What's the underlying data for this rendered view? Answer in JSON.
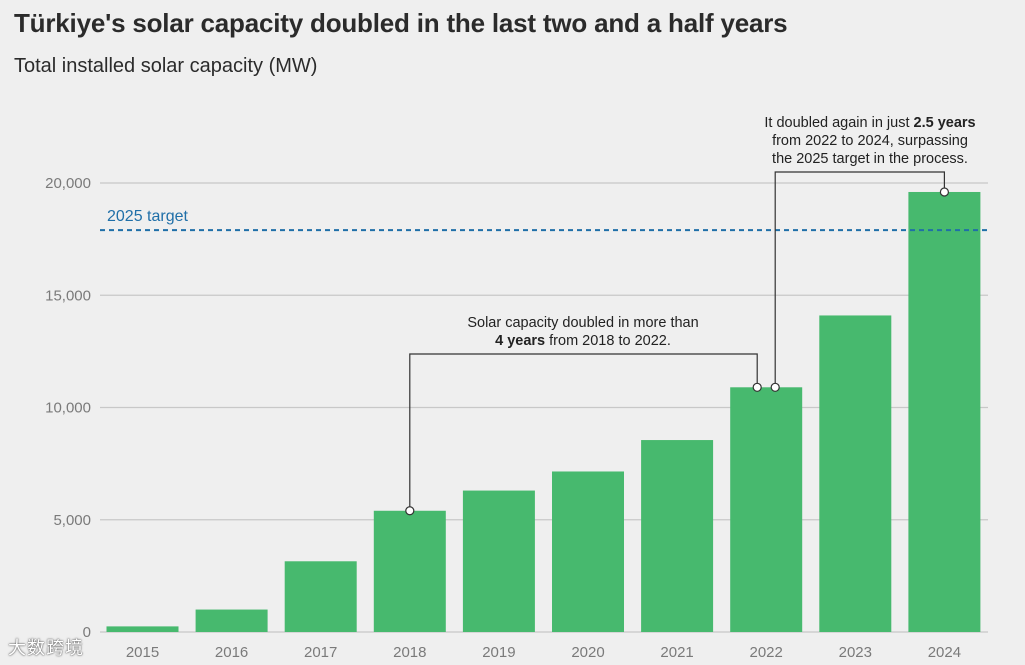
{
  "title": "Türkiye's solar capacity doubled in the last two and a half years",
  "subtitle": "Total installed solar capacity (MW)",
  "watermark": "大数跨境",
  "colors": {
    "bar": "#47b96e",
    "target_line": "#1f6fa8",
    "grid": "#c8c8c8",
    "annotation_line": "#333333"
  },
  "chart_data": {
    "type": "bar",
    "categories": [
      "2015",
      "2016",
      "2017",
      "2018",
      "2019",
      "2020",
      "2021",
      "2022",
      "2023",
      "2024"
    ],
    "values": [
      250,
      1000,
      3150,
      5400,
      6300,
      7150,
      8550,
      10900,
      14100,
      19600
    ],
    "ylim": [
      0,
      20000
    ],
    "yticks": [
      0,
      5000,
      10000,
      15000,
      20000
    ],
    "ytick_labels": [
      "0",
      "5,000",
      "10,000",
      "15,000",
      "20,000"
    ],
    "grid": true,
    "target": {
      "label": "2025 target",
      "value": 17900
    },
    "annotations": [
      {
        "from": "2018",
        "to": "2022",
        "lines": [
          [
            {
              "text": "Solar capacity doubled in more than",
              "bold": false
            }
          ],
          [
            {
              "text": "4 years",
              "bold": true
            },
            {
              "text": " from 2018 to 2022.",
              "bold": false
            }
          ]
        ]
      },
      {
        "from": "2022",
        "to": "2024",
        "lines": [
          [
            {
              "text": "It doubled again in just ",
              "bold": false
            },
            {
              "text": "2.5 years",
              "bold": true
            }
          ],
          [
            {
              "text": "from 2022 to 2024, surpassing",
              "bold": false
            }
          ],
          [
            {
              "text": "the 2025 target in the process.",
              "bold": false
            }
          ]
        ]
      }
    ]
  }
}
